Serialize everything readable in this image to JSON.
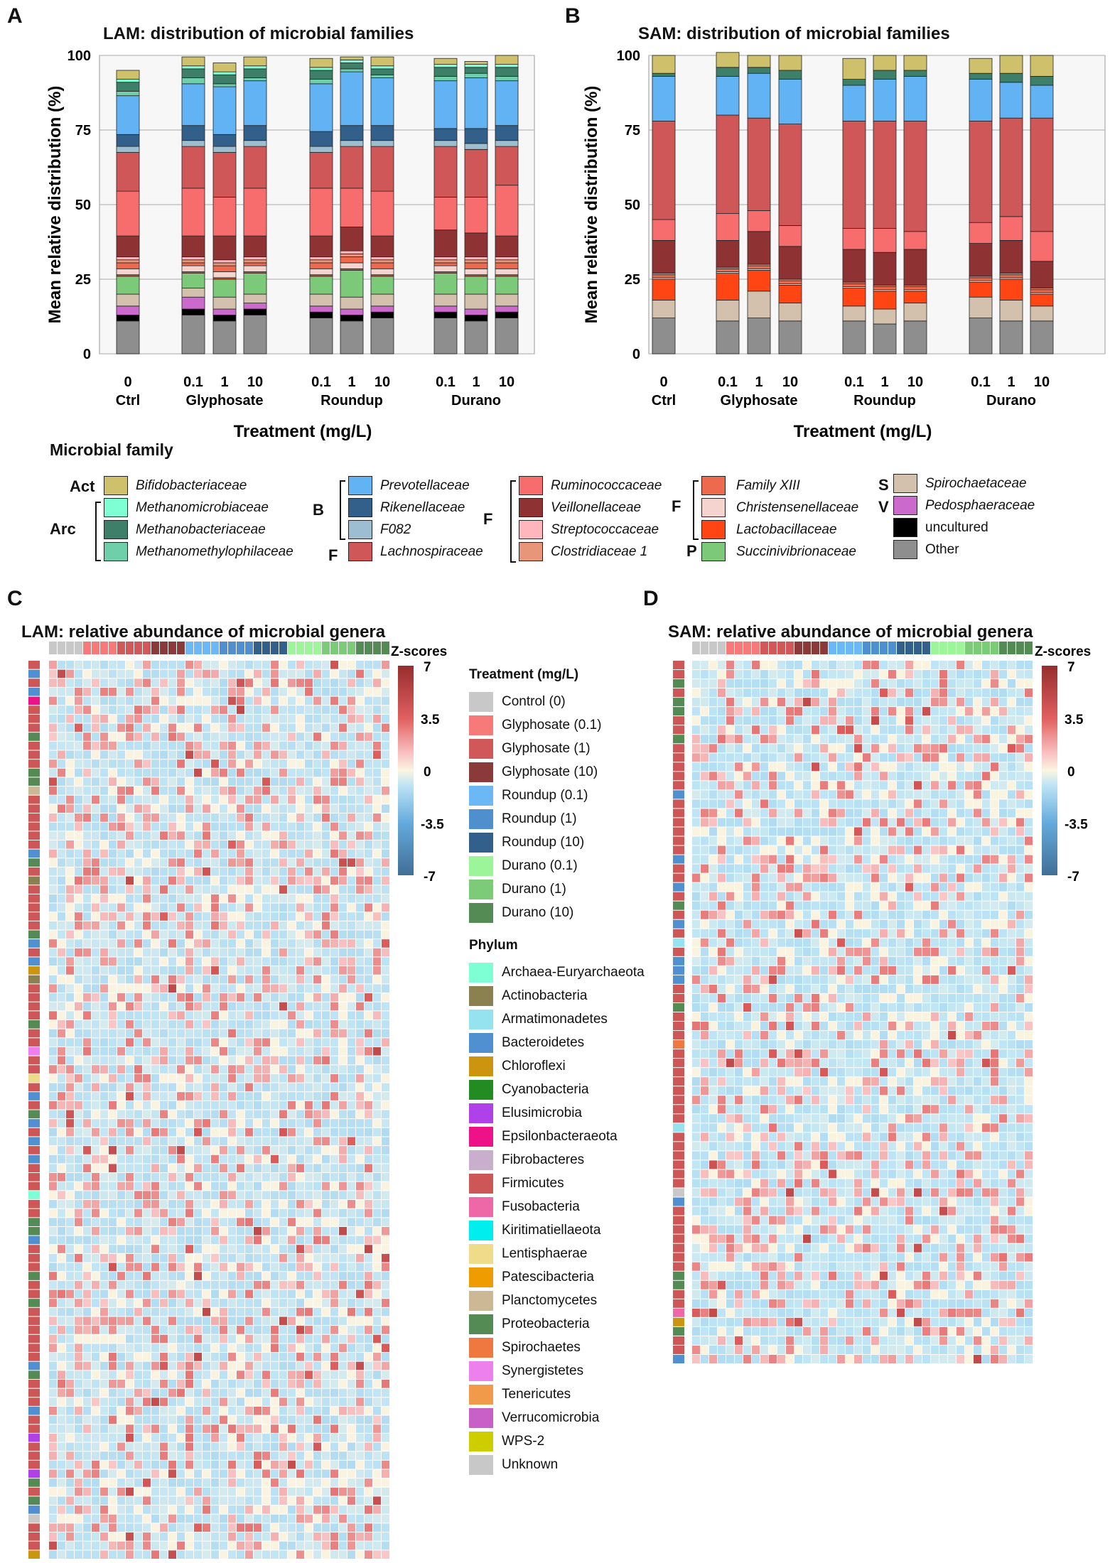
{
  "panels": {
    "A": "A",
    "B": "B",
    "C": "C",
    "D": "D"
  },
  "colors": {
    "Bifidobacteriaceae": "#cfc16c",
    "Methanomicrobiaceae": "#7fffd4",
    "Methanobacteriaceae": "#3e7f6a",
    "Methanomethylophilaceae": "#6ecfaa",
    "Prevotellaceae": "#62b3f4",
    "Rikenellaceae": "#33608a",
    "F082": "#9dbed0",
    "Lachnospiraceae": "#cf5757",
    "Ruminococcaceae": "#f76d6d",
    "Veillonellaceae": "#8e3233",
    "Streptococcaceae": "#ffb6bd",
    "Clostridiaceae 1": "#e8967a",
    "Family XIII": "#ee6a4f",
    "Christensenellaceae": "#f5d4cf",
    "Lactobacillaceae": "#ff4513",
    "Succinivibrionaceae": "#7dc97a",
    "Spirochaetaceae": "#d3c1ad",
    "Pedosphaeraceae": "#cc69cc",
    "uncultured": "#000000",
    "Other": "#8e8e8e"
  },
  "stack_order": [
    "Other",
    "uncultured",
    "Pedosphaeraceae",
    "Spirochaetaceae",
    "Succinivibrionaceae",
    "Lactobacillaceae",
    "Christensenellaceae",
    "Family XIII",
    "Clostridiaceae 1",
    "Streptococcaceae",
    "Veillonellaceae",
    "Ruminococcaceae",
    "Lachnospiraceae",
    "F082",
    "Rikenellaceae",
    "Prevotellaceae",
    "Methanomethylophilaceae",
    "Methanobacteriaceae",
    "Methanomicrobiaceae",
    "Bifidobacteriaceae"
  ],
  "chart_data": [
    {
      "type": "bar",
      "stacked": true,
      "title": "LAM: distribution of microbial families",
      "xlabel": "Treatment  (mg/L)",
      "ylabel": "Mean relative distribution (%)",
      "ylim": [
        0,
        100
      ],
      "yticks": [
        "0",
        "25",
        "50",
        "75",
        "100"
      ],
      "tick_labels": [
        "0",
        "0.1",
        "1",
        "10",
        "0.1",
        "1",
        "10",
        "0.1",
        "1",
        "10"
      ],
      "group_labels": [
        "Ctrl",
        "Glyphosate",
        "Roundup",
        "Durano"
      ],
      "categories": [
        "Ctrl 0",
        "Glyphosate 0.1",
        "Glyphosate 1",
        "Glyphosate 10",
        "Roundup 0.1",
        "Roundup 1",
        "Roundup 10",
        "Durano 0.1",
        "Durano 1",
        "Durano 10"
      ],
      "series": [
        {
          "name": "Other",
          "values": [
            11,
            13,
            11,
            13,
            12,
            11,
            12,
            12,
            11,
            12
          ]
        },
        {
          "name": "uncultured",
          "values": [
            2,
            2,
            2,
            2,
            2,
            2,
            2,
            2,
            2,
            2
          ]
        },
        {
          "name": "Pedosphaeraceae",
          "values": [
            3,
            4,
            2,
            2,
            2,
            2,
            2,
            2,
            2,
            2
          ]
        },
        {
          "name": "Spirochaetaceae",
          "values": [
            4,
            3,
            4,
            3,
            4,
            4,
            4,
            4,
            5,
            4
          ]
        },
        {
          "name": "Succinivibrionaceae",
          "values": [
            6,
            5,
            6,
            7,
            6,
            9,
            6,
            7,
            6,
            6
          ]
        },
        {
          "name": "Lactobacillaceae",
          "values": [
            0.5,
            0.5,
            0.5,
            0.5,
            0.5,
            0.5,
            0.5,
            0.5,
            0.5,
            0.5
          ]
        },
        {
          "name": "Christensenellaceae",
          "values": [
            2,
            2,
            2,
            2,
            2,
            2,
            2,
            2,
            2,
            2
          ]
        },
        {
          "name": "Family XIII",
          "values": [
            2,
            1,
            2,
            1,
            2,
            2,
            2,
            1,
            2,
            2
          ]
        },
        {
          "name": "Clostridiaceae 1",
          "values": [
            1,
            1,
            1,
            1,
            1,
            1,
            1,
            1,
            1,
            1
          ]
        },
        {
          "name": "Streptococcaceae",
          "values": [
            1,
            1,
            1,
            1,
            1,
            1,
            1,
            1,
            1,
            1
          ]
        },
        {
          "name": "Veillonellaceae",
          "values": [
            7,
            7,
            8,
            7,
            7,
            8,
            7,
            9,
            8,
            7
          ]
        },
        {
          "name": "Ruminococcaceae",
          "values": [
            15,
            16,
            13,
            16,
            16,
            13,
            15,
            11,
            12,
            17
          ]
        },
        {
          "name": "Lachnospiraceae",
          "values": [
            13,
            14,
            15,
            14,
            12,
            14,
            15,
            17,
            16,
            13
          ]
        },
        {
          "name": "F082",
          "values": [
            2,
            2,
            2,
            2,
            2,
            2,
            2,
            2,
            2,
            2
          ]
        },
        {
          "name": "Rikenellaceae",
          "values": [
            4,
            5,
            4,
            5,
            5,
            5,
            5,
            4,
            5,
            5
          ]
        },
        {
          "name": "Prevotellaceae",
          "values": [
            13,
            14,
            16,
            15,
            16,
            18,
            16,
            16,
            17,
            15
          ]
        },
        {
          "name": "Methanomethylophilaceae",
          "values": [
            1.5,
            2,
            1,
            1,
            1.5,
            1,
            1,
            1.5,
            1.5,
            1.5
          ]
        },
        {
          "name": "Methanobacteriaceae",
          "values": [
            3,
            3,
            3,
            3,
            3,
            2,
            2,
            3,
            2,
            3
          ]
        },
        {
          "name": "Methanomicrobiaceae",
          "values": [
            1,
            1,
            1,
            1,
            1,
            1,
            1,
            1,
            1,
            1
          ]
        },
        {
          "name": "Bifidobacteriaceae",
          "values": [
            3,
            3,
            3,
            3,
            3,
            1,
            3,
            2,
            1,
            3
          ]
        }
      ]
    },
    {
      "type": "bar",
      "stacked": true,
      "title": "SAM: distribution of microbial families",
      "xlabel": "Treatment  (mg/L)",
      "ylabel": "Mean relative distribution (%)",
      "ylim": [
        0,
        100
      ],
      "yticks": [
        "0",
        "25",
        "50",
        "75",
        "100"
      ],
      "tick_labels": [
        "0",
        "0.1",
        "1",
        "10",
        "0.1",
        "1",
        "10",
        "0.1",
        "1",
        "10"
      ],
      "group_labels": [
        "Ctrl",
        "Glyphosate",
        "Roundup",
        "Durano"
      ],
      "categories": [
        "Ctrl 0",
        "Glyphosate 0.1",
        "Glyphosate 1",
        "Glyphosate 10",
        "Roundup 0.1",
        "Roundup 1",
        "Roundup 10",
        "Durano 0.1",
        "Durano 1",
        "Durano 10"
      ],
      "series": [
        {
          "name": "Other",
          "values": [
            12,
            11,
            12,
            11,
            11,
            10,
            11,
            12,
            11,
            11
          ]
        },
        {
          "name": "uncultured",
          "values": [
            0,
            0,
            0,
            0,
            0,
            0,
            0,
            0,
            0,
            0
          ]
        },
        {
          "name": "Pedosphaeraceae",
          "values": [
            0,
            0,
            0,
            0,
            0,
            0,
            0,
            0,
            0,
            0
          ]
        },
        {
          "name": "Spirochaetaceae",
          "values": [
            6,
            7,
            9,
            6,
            5,
            5,
            6,
            7,
            7,
            5
          ]
        },
        {
          "name": "Succinivibrionaceae",
          "values": [
            0,
            0,
            0,
            0,
            0,
            0,
            0,
            0,
            0,
            0
          ]
        },
        {
          "name": "Lactobacillaceae",
          "values": [
            7,
            9,
            7,
            6,
            6,
            6,
            4,
            5,
            7,
            4
          ]
        },
        {
          "name": "Christensenellaceae",
          "values": [
            0.5,
            0.5,
            0.5,
            0.5,
            0.5,
            0.5,
            0.5,
            0.5,
            0.5,
            0.5
          ]
        },
        {
          "name": "Family XIII",
          "values": [
            1,
            1,
            1,
            1,
            1,
            1,
            1,
            1,
            1,
            1
          ]
        },
        {
          "name": "Clostridiaceae 1",
          "values": [
            0.5,
            0.5,
            0.5,
            0.5,
            0.5,
            0.5,
            0.5,
            0.5,
            0.5,
            0.5
          ]
        },
        {
          "name": "Streptococcaceae",
          "values": [
            0,
            0,
            0,
            0,
            0,
            0,
            0,
            0,
            0,
            0
          ]
        },
        {
          "name": "Veillonellaceae",
          "values": [
            11,
            9,
            11,
            11,
            11,
            11,
            12,
            11,
            11,
            9
          ]
        },
        {
          "name": "Ruminococcaceae",
          "values": [
            7,
            9,
            7,
            7,
            7,
            8,
            6,
            7,
            8,
            10
          ]
        },
        {
          "name": "Lachnospiraceae",
          "values": [
            33,
            33,
            31,
            34,
            36,
            36,
            37,
            34,
            33,
            38
          ]
        },
        {
          "name": "F082",
          "values": [
            0,
            0,
            0,
            0,
            0,
            0,
            0,
            0,
            0,
            0
          ]
        },
        {
          "name": "Rikenellaceae",
          "values": [
            0,
            0,
            0,
            0,
            0,
            0,
            0,
            0,
            0,
            0
          ]
        },
        {
          "name": "Prevotellaceae",
          "values": [
            15,
            13,
            15,
            15,
            12,
            14,
            15,
            14,
            12,
            11
          ]
        },
        {
          "name": "Methanomethylophilaceae",
          "values": [
            0,
            0,
            0,
            0,
            0,
            0,
            0,
            0,
            0,
            0
          ]
        },
        {
          "name": "Methanobacteriaceae",
          "values": [
            1,
            3,
            2,
            3,
            2,
            3,
            2,
            2,
            3,
            3
          ]
        },
        {
          "name": "Methanomicrobiaceae",
          "values": [
            0,
            0,
            0,
            0,
            0,
            0,
            0,
            0,
            0,
            0
          ]
        },
        {
          "name": "Bifidobacteriaceae",
          "values": [
            6,
            5,
            4,
            5,
            7,
            5,
            5,
            5,
            6,
            7
          ]
        }
      ]
    },
    {
      "type": "heatmap",
      "title": "LAM: relative abundance of microbial genera",
      "colorbar_title": "Z-scores",
      "colorbar_ticks": [
        "7",
        "3.5",
        "0",
        "-3.5",
        "-7"
      ],
      "zlim": [
        -7,
        7
      ],
      "n_columns": 40,
      "n_rows": 100
    },
    {
      "type": "heatmap",
      "title": "SAM: relative abundance of microbial genera",
      "colorbar_title": "Z-scores",
      "colorbar_ticks": [
        "7",
        "3.5",
        "0",
        "-3.5",
        "-7"
      ],
      "zlim": [
        -7,
        7
      ],
      "n_columns": 40,
      "n_rows": 76
    }
  ],
  "family_legend": {
    "title": "Microbial family",
    "groups": {
      "act": "Act",
      "arc": "Arc",
      "b": "B",
      "f1": "F",
      "f2": "F",
      "f3": "F",
      "p": "P",
      "s": "S",
      "v": "V"
    },
    "items": {
      "bifido": "Bifidobacteriaceae",
      "methanomicro": "Methanomicrobiaceae",
      "methanobact": "Methanobacteriaceae",
      "methanomethylo": "Methanomethylophilaceae",
      "prevotella": "Prevotellaceae",
      "rikenella": "Rikenellaceae",
      "f082": "F082",
      "lachno": "Lachnospiraceae",
      "rumino": "Ruminococcaceae",
      "veillo": "Veillonellaceae",
      "strepto": "Streptococcaceae",
      "clostri": "Clostridiaceae 1",
      "famxiii": "Family XIII",
      "christ": "Christensenellaceae",
      "lacto": "Lactobacillaceae",
      "succini": "Succinivibrionaceae",
      "spiro": "Spirochaetaceae",
      "pedo": "Pedosphaeraceae",
      "uncult": "uncultured",
      "other": "Other"
    }
  },
  "treatment_legend": {
    "title": "Treatment (mg/L)",
    "items": [
      {
        "label": "Control (0)",
        "color": "#c8c8c8"
      },
      {
        "label": "Glyphosate (0.1)",
        "color": "#f77a7a"
      },
      {
        "label": "Glyphosate (1)",
        "color": "#d05858"
      },
      {
        "label": "Glyphosate (10)",
        "color": "#8b3a3a"
      },
      {
        "label": "Roundup (0.1)",
        "color": "#6cb8f6"
      },
      {
        "label": "Roundup (1)",
        "color": "#4f8fce"
      },
      {
        "label": "Roundup (10)",
        "color": "#33608a"
      },
      {
        "label": "Durano (0.1)",
        "color": "#9df59a"
      },
      {
        "label": "Durano (1)",
        "color": "#7ccb78"
      },
      {
        "label": "Durano (10)",
        "color": "#548a53"
      }
    ]
  },
  "phylum_legend": {
    "title": "Phylum",
    "items": [
      {
        "label": "Archaea-Euryarchaeota",
        "color": "#7fffd4"
      },
      {
        "label": "Actinobacteria",
        "color": "#8b8050"
      },
      {
        "label": "Armatimonadetes",
        "color": "#94e3ef"
      },
      {
        "label": "Bacteroidetes",
        "color": "#5090d0"
      },
      {
        "label": "Chloroflexi",
        "color": "#cc9510"
      },
      {
        "label": "Cyanobacteria",
        "color": "#228b22"
      },
      {
        "label": "Elusimicrobia",
        "color": "#b040e8"
      },
      {
        "label": "Epsilonbacteraeota",
        "color": "#ee1288"
      },
      {
        "label": "Fibrobacteres",
        "color": "#c8b0cc"
      },
      {
        "label": "Firmicutes",
        "color": "#cd5656"
      },
      {
        "label": "Fusobacteria",
        "color": "#ee68a8"
      },
      {
        "label": "Kiritimatiellaeota",
        "color": "#00eeee"
      },
      {
        "label": "Lentisphaerae",
        "color": "#efdc8a"
      },
      {
        "label": "Patescibacteria",
        "color": "#ef9c00"
      },
      {
        "label": "Planctomycetes",
        "color": "#cdb895"
      },
      {
        "label": "Proteobacteria",
        "color": "#548a53"
      },
      {
        "label": "Spirochaetes",
        "color": "#ef7840"
      },
      {
        "label": "Synergistetes",
        "color": "#ee80ee"
      },
      {
        "label": "Tenericutes",
        "color": "#f09a4a"
      },
      {
        "label": "Verrucomicrobia",
        "color": "#c860c8"
      },
      {
        "label": "WPS-2",
        "color": "#cdcd00"
      },
      {
        "label": "Unknown",
        "color": "#c8c8c8"
      }
    ]
  }
}
